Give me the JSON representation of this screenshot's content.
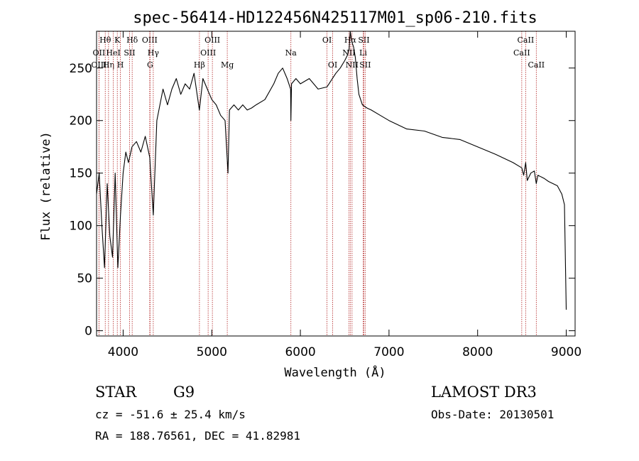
{
  "chart_data": {
    "type": "line",
    "title": "spec-56414-HD122456N425117M01_sp06-210.fits",
    "xlabel": "Wavelength (Å)",
    "ylabel": "Flux (relative)",
    "xlim": [
      3700,
      9100
    ],
    "ylim": [
      -5,
      285
    ],
    "xticks": [
      4000,
      5000,
      6000,
      7000,
      8000,
      9000
    ],
    "yticks": [
      0,
      50,
      100,
      150,
      200,
      250
    ],
    "series": [
      {
        "name": "flux",
        "x": [
          3700,
          3730,
          3760,
          3790,
          3820,
          3850,
          3880,
          3910,
          3940,
          3970,
          4000,
          4030,
          4060,
          4100,
          4150,
          4200,
          4250,
          4300,
          4340,
          4380,
          4450,
          4500,
          4550,
          4600,
          4650,
          4700,
          4750,
          4800,
          4860,
          4900,
          4950,
          5000,
          5050,
          5100,
          5150,
          5183,
          5200,
          5250,
          5300,
          5350,
          5400,
          5450,
          5500,
          5600,
          5700,
          5750,
          5800,
          5850,
          5890,
          5893,
          5900,
          5950,
          6000,
          6100,
          6200,
          6300,
          6400,
          6450,
          6500,
          6530,
          6550,
          6563,
          6580,
          6600,
          6620,
          6640,
          6660,
          6700,
          6750,
          6800,
          6900,
          7000,
          7200,
          7400,
          7600,
          7800,
          8000,
          8200,
          8400,
          8498,
          8520,
          8542,
          8560,
          8600,
          8640,
          8662,
          8680,
          8750,
          8800,
          8850,
          8900,
          8950,
          8980,
          9000
        ],
        "y": [
          130,
          150,
          100,
          60,
          140,
          90,
          70,
          150,
          60,
          110,
          150,
          170,
          160,
          175,
          180,
          170,
          185,
          165,
          110,
          200,
          230,
          215,
          230,
          240,
          225,
          235,
          230,
          245,
          210,
          240,
          230,
          220,
          215,
          205,
          200,
          150,
          210,
          215,
          210,
          215,
          210,
          212,
          215,
          220,
          235,
          245,
          250,
          240,
          230,
          200,
          235,
          240,
          235,
          240,
          230,
          232,
          245,
          250,
          257,
          262,
          268,
          285,
          275,
          270,
          260,
          240,
          225,
          215,
          212,
          210,
          205,
          200,
          192,
          190,
          184,
          182,
          175,
          168,
          160,
          155,
          148,
          160,
          143,
          150,
          152,
          140,
          148,
          145,
          142,
          140,
          138,
          130,
          120,
          20
        ]
      }
    ],
    "spectral_lines": [
      {
        "label": "Hθ",
        "x": 3798,
        "row": 0
      },
      {
        "label": "OII",
        "x": 3727,
        "row": 1
      },
      {
        "label": "OIII",
        "x": 3727,
        "row": 2
      },
      {
        "label": "Hη",
        "x": 3835,
        "row": 2
      },
      {
        "label": "HeI",
        "x": 3889,
        "row": 1
      },
      {
        "label": "K",
        "x": 3934,
        "row": 0
      },
      {
        "label": "H",
        "x": 3969,
        "row": 2
      },
      {
        "label": "SII",
        "x": 4072,
        "row": 1
      },
      {
        "label": "Hδ",
        "x": 4102,
        "row": 0
      },
      {
        "label": "OIII",
        "x": 4300,
        "row": 0
      },
      {
        "label": "Hγ",
        "x": 4340,
        "row": 1
      },
      {
        "label": "G",
        "x": 4304,
        "row": 2
      },
      {
        "label": "Hβ",
        "x": 4861,
        "row": 2
      },
      {
        "label": "OIII",
        "x": 4959,
        "row": 1
      },
      {
        "label": "OIII",
        "x": 5007,
        "row": 0
      },
      {
        "label": "Mg",
        "x": 5175,
        "row": 2
      },
      {
        "label": "Na",
        "x": 5893,
        "row": 1
      },
      {
        "label": "OI",
        "x": 6300,
        "row": 0
      },
      {
        "label": "OI",
        "x": 6364,
        "row": 2
      },
      {
        "label": "Hα",
        "x": 6563,
        "row": 0
      },
      {
        "label": "NII",
        "x": 6548,
        "row": 1
      },
      {
        "label": "NII",
        "x": 6583,
        "row": 2
      },
      {
        "label": "SII",
        "x": 6716,
        "row": 0
      },
      {
        "label": "Li",
        "x": 6708,
        "row": 1
      },
      {
        "label": "SII",
        "x": 6731,
        "row": 2
      },
      {
        "label": "CaII",
        "x": 8542,
        "row": 0
      },
      {
        "label": "CaII",
        "x": 8498,
        "row": 1
      },
      {
        "label": "CaII",
        "x": 8662,
        "row": 2
      }
    ]
  },
  "info": {
    "object_class": "STAR",
    "subclass": "G9",
    "survey": "LAMOST DR3",
    "cz": "cz = -51.6 ± 25.4 km/s",
    "obs_date": "Obs-Date: 20130501",
    "coords": "RA = 188.76561, DEC =  41.82981"
  }
}
